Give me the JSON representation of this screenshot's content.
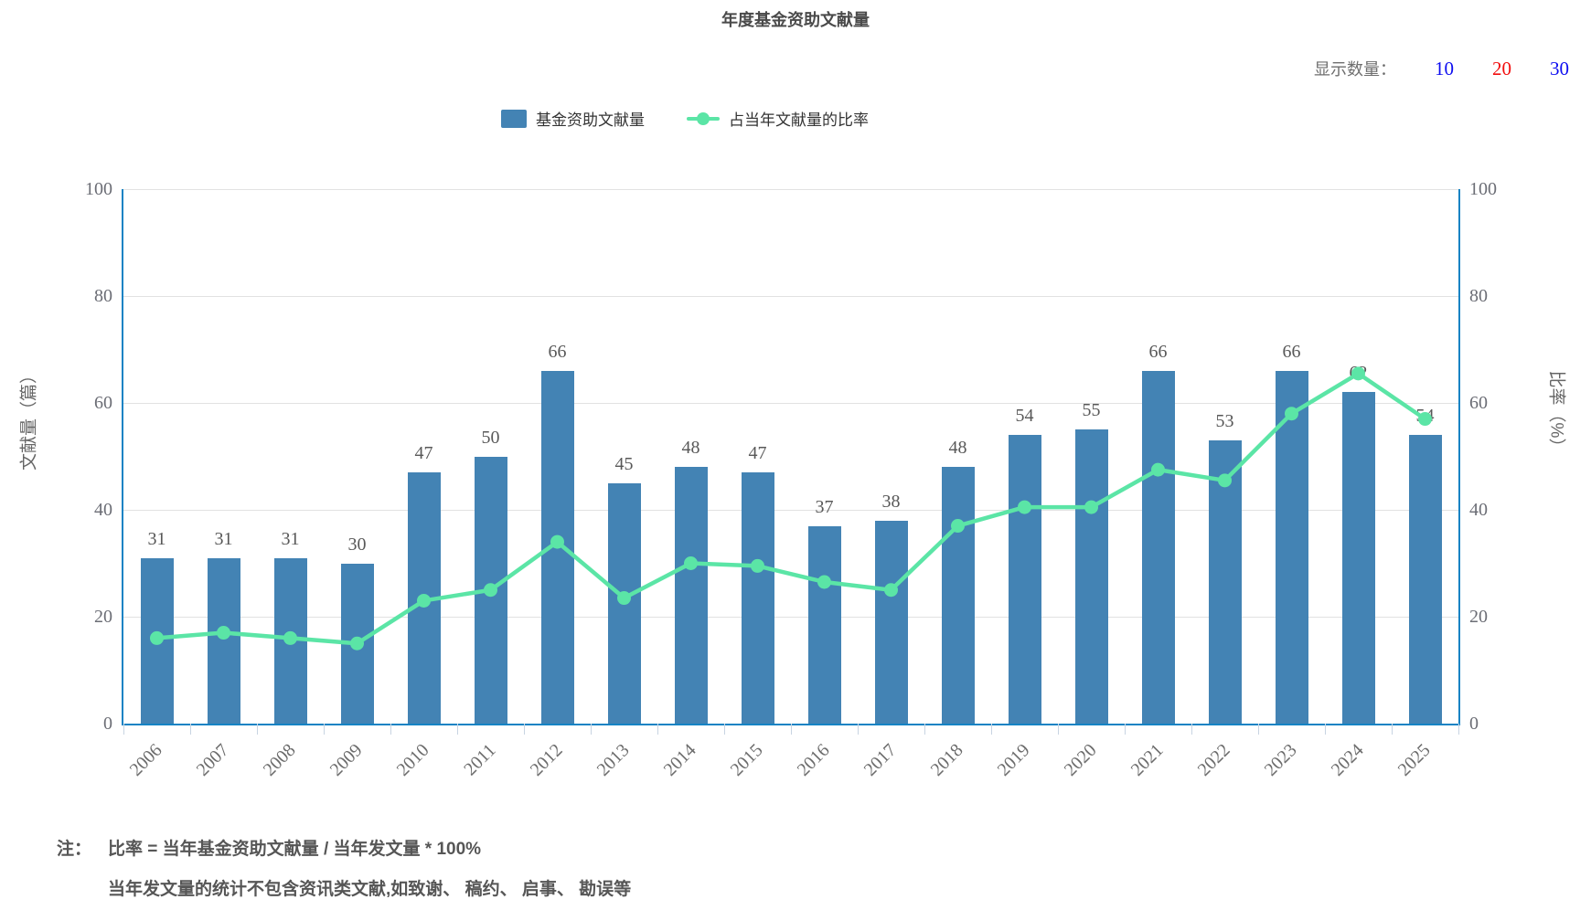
{
  "display_count": {
    "label": "显示数量：",
    "options": [
      {
        "value": "10",
        "color": "#0d0df0",
        "selected": false
      },
      {
        "value": "20",
        "color": "#f20d0d",
        "selected": true
      },
      {
        "value": "30",
        "color": "#0d0df0",
        "selected": false
      }
    ]
  },
  "notes": {
    "prefix": "注：",
    "lines": [
      "比率 = 当年基金资助文献量 / 当年发文量 * 100%",
      "当年发文量的统计不包含资讯类文献,如致谢、 稿约、 启事、 勘误等"
    ]
  },
  "chart_data": {
    "type": "bar",
    "title": "年度基金资助文献量",
    "categories": [
      "2006",
      "2007",
      "2008",
      "2009",
      "2010",
      "2011",
      "2012",
      "2013",
      "2014",
      "2015",
      "2016",
      "2017",
      "2018",
      "2019",
      "2020",
      "2021",
      "2022",
      "2023",
      "2024",
      "2025"
    ],
    "series": [
      {
        "name": "基金资助文献量",
        "type": "bar",
        "axis": "left",
        "color": "#4383b4",
        "values": [
          31,
          31,
          31,
          30,
          47,
          50,
          66,
          45,
          48,
          47,
          37,
          38,
          48,
          54,
          55,
          66,
          53,
          66,
          62,
          54
        ]
      },
      {
        "name": "占当年文献量的比率",
        "type": "line",
        "axis": "right",
        "color": "#5be5a6",
        "values": [
          16,
          17,
          16,
          15,
          23,
          25,
          34,
          23.5,
          30,
          29.5,
          26.5,
          25,
          37,
          40.5,
          40.5,
          47.5,
          45.5,
          58,
          65.5,
          57
        ]
      }
    ],
    "xlabel": "",
    "ylabel_left": "文献量（篇）",
    "ylabel_right": "比率（%）",
    "ylim": [
      0,
      100
    ],
    "yticks": [
      0,
      20,
      40,
      60,
      80,
      100
    ],
    "grid": true,
    "legend_position": "top",
    "axis_color": "#1583c4",
    "bar_labels_shown": true
  }
}
